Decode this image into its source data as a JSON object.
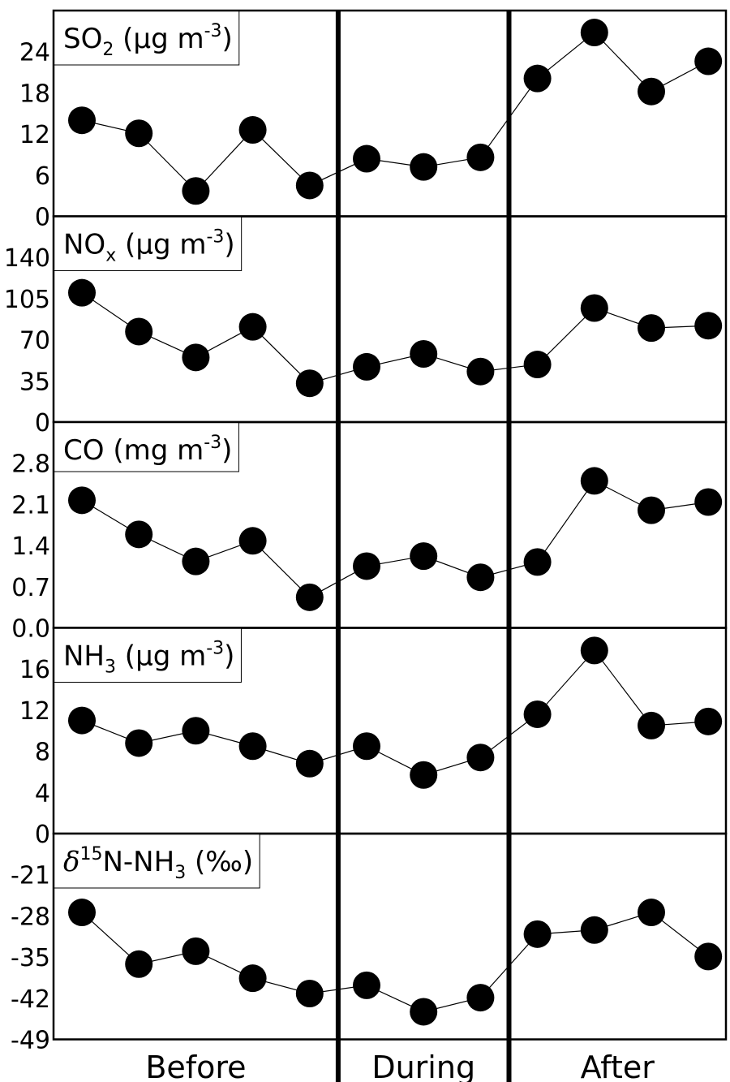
{
  "chart_data": {
    "type": "scatter",
    "periods": [
      "Before",
      "During",
      "After"
    ],
    "period_point_counts": [
      5,
      3,
      4
    ],
    "x": [
      1,
      2,
      3,
      4,
      5,
      6,
      7,
      8,
      9,
      10,
      11,
      12
    ],
    "connected": true,
    "grid": false,
    "legend": "none",
    "marker_color": "#000000",
    "panels": [
      {
        "label_main": "SO",
        "label_sub": "2",
        "label_unit_open": " (",
        "label_unit_mu": "μ",
        "label_unit_rest": "g m",
        "label_unit_sup": "-3",
        "label_unit_close": ")",
        "ylim": [
          0,
          30
        ],
        "ticks": [
          0,
          6,
          12,
          18,
          24
        ],
        "tick_labels": [
          "0",
          "6",
          "12",
          "18",
          "24"
        ],
        "values": [
          14.0,
          12.1,
          3.7,
          12.6,
          4.5,
          8.4,
          7.2,
          8.6,
          20.1,
          26.8,
          18.2,
          22.6
        ]
      },
      {
        "label_main": "NO",
        "label_sub": "x",
        "label_unit_open": " (",
        "label_unit_mu": "μ",
        "label_unit_rest": "g m",
        "label_unit_sup": "-3",
        "label_unit_close": ")",
        "ylim": [
          0,
          175
        ],
        "ticks": [
          0,
          35,
          70,
          105,
          140
        ],
        "tick_labels": [
          "0",
          "35",
          "70",
          "105",
          "140"
        ],
        "values": [
          110,
          77,
          55,
          81,
          33,
          47,
          58,
          43,
          49,
          97,
          80,
          82
        ]
      },
      {
        "label_main": "CO",
        "label_sub": "",
        "label_unit_open": " (",
        "label_unit_mu": "",
        "label_unit_rest": "mg m",
        "label_unit_sup": "-3",
        "label_unit_close": ")",
        "ylim": [
          0.0,
          3.5
        ],
        "ticks": [
          0.0,
          0.7,
          1.4,
          2.1,
          2.8
        ],
        "tick_labels": [
          "0.0",
          "0.7",
          "1.4",
          "2.1",
          "2.8"
        ],
        "values": [
          2.17,
          1.59,
          1.13,
          1.48,
          0.52,
          1.05,
          1.22,
          0.86,
          1.12,
          2.5,
          2.0,
          2.14
        ]
      },
      {
        "label_main": "NH",
        "label_sub": "3",
        "label_unit_open": " (",
        "label_unit_mu": "μ",
        "label_unit_rest": "g m",
        "label_unit_sup": "-3",
        "label_unit_close": ")",
        "ylim": [
          0,
          20
        ],
        "ticks": [
          0,
          4,
          8,
          12,
          16
        ],
        "tick_labels": [
          "0",
          "4",
          "8",
          "12",
          "16"
        ],
        "values": [
          11.0,
          8.8,
          10.0,
          8.5,
          6.8,
          8.5,
          5.7,
          7.4,
          11.6,
          17.8,
          10.5,
          10.9
        ]
      },
      {
        "label_main": "δ",
        "label_sup": "15",
        "label_mid": "N-NH",
        "label_sub": "3",
        "label_unit_open": " (",
        "label_unit_rest": "‰",
        "label_unit_close": ")",
        "ylim": [
          -49,
          -14
        ],
        "ticks": [
          -49,
          -42,
          -35,
          -28,
          -21
        ],
        "tick_labels": [
          "-49",
          "-42",
          "-35",
          "-28",
          "-21"
        ],
        "values": [
          -27.4,
          -36.2,
          -34.0,
          -38.6,
          -41.2,
          -39.8,
          -44.3,
          -41.9,
          -31.1,
          -30.4,
          -27.4,
          -34.9
        ]
      }
    ]
  }
}
